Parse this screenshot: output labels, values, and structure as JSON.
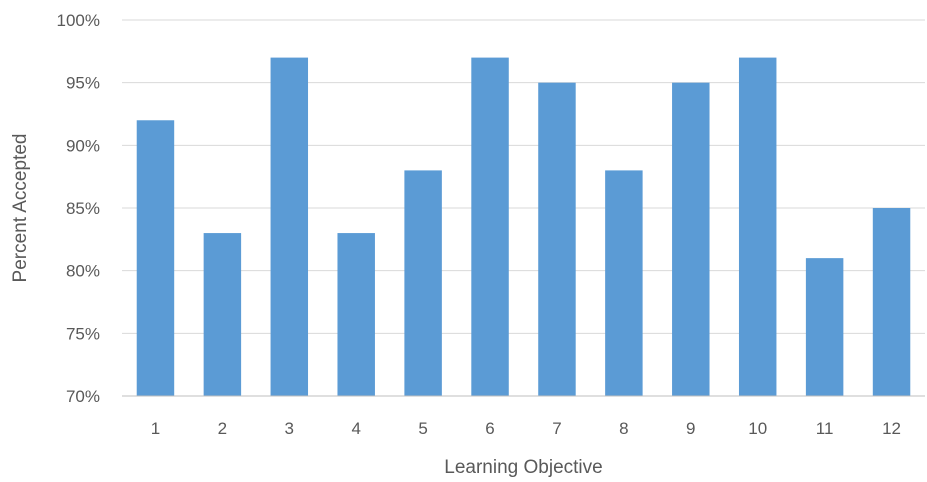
{
  "chart_data": {
    "type": "bar",
    "title": "",
    "xlabel": "Learning Objective",
    "ylabel": "Percent Accepted",
    "categories": [
      "1",
      "2",
      "3",
      "4",
      "5",
      "6",
      "7",
      "8",
      "9",
      "10",
      "11",
      "12"
    ],
    "values": [
      0.92,
      0.83,
      0.97,
      0.83,
      0.88,
      0.97,
      0.95,
      0.88,
      0.95,
      0.97,
      0.81,
      0.85
    ],
    "ylim": [
      0.7,
      1.0
    ],
    "yticks": [
      0.7,
      0.75,
      0.8,
      0.85,
      0.9,
      0.95,
      1.0
    ],
    "ytick_labels": [
      "70%",
      "75%",
      "80%",
      "85%",
      "90%",
      "95%",
      "100%"
    ],
    "grid": true,
    "legend": "none",
    "bar_color": "#5b9bd5"
  }
}
